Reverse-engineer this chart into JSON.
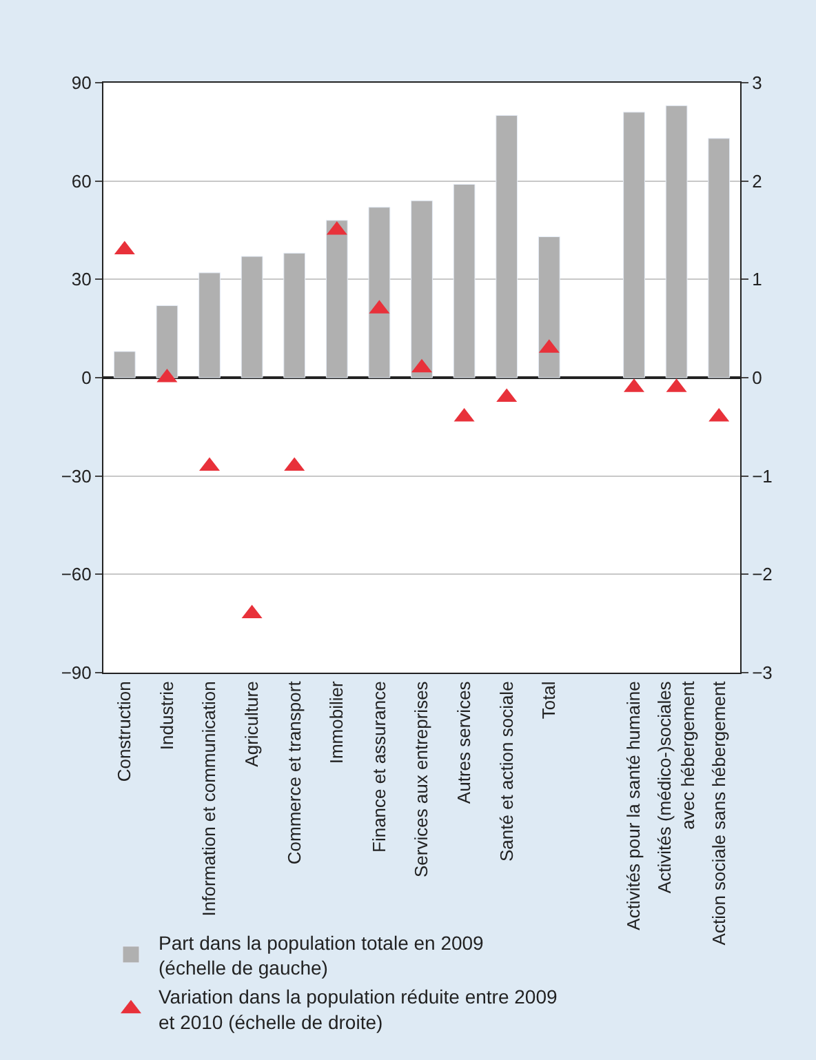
{
  "chart_data": {
    "type": "bar",
    "categories": [
      "Construction",
      "Industrie",
      "Information et communication",
      "Agriculture",
      "Commerce et transport",
      "Immobilier",
      "Finance et assurance",
      "Services aux entreprises",
      "Autres services",
      "Santé et action sociale",
      "Total",
      null,
      "Activités pour la santé humaine",
      "Activités (médico-)sociales\navec hébergement",
      "Action sociale sans hébergement"
    ],
    "series": [
      {
        "name": "Part dans la population totale en 2009\n(échelle de gauche)",
        "color": "#b0b0b0",
        "values": [
          8,
          22,
          32,
          37,
          38,
          48,
          52,
          54,
          59,
          80,
          43,
          null,
          81,
          83,
          73
        ]
      },
      {
        "name": "Variation dans la population réduite entre 2009\net 2010 (échelle de droite)",
        "type": "scatter",
        "axis": "y2",
        "marker": "triangle",
        "color": "#e8313a",
        "values": [
          1.3,
          0.0,
          -0.9,
          -2.4,
          -0.9,
          1.5,
          0.7,
          0.1,
          -0.4,
          -0.2,
          0.3,
          null,
          -0.1,
          -0.1,
          -0.4
        ]
      }
    ],
    "ylim": [
      -90,
      90
    ],
    "yticks": [
      {
        "value": -90,
        "label": "−90"
      },
      {
        "value": -60,
        "label": "−60"
      },
      {
        "value": -30,
        "label": "−30"
      },
      0,
      30,
      60,
      90
    ],
    "y2lim": [
      -3,
      3
    ],
    "y2ticks": [
      {
        "value": -3,
        "label": "−3"
      },
      {
        "value": -2,
        "label": "−2"
      },
      {
        "value": -1,
        "label": "−1"
      },
      0,
      1,
      2,
      3
    ],
    "grid": "y",
    "legend": "bottom"
  }
}
